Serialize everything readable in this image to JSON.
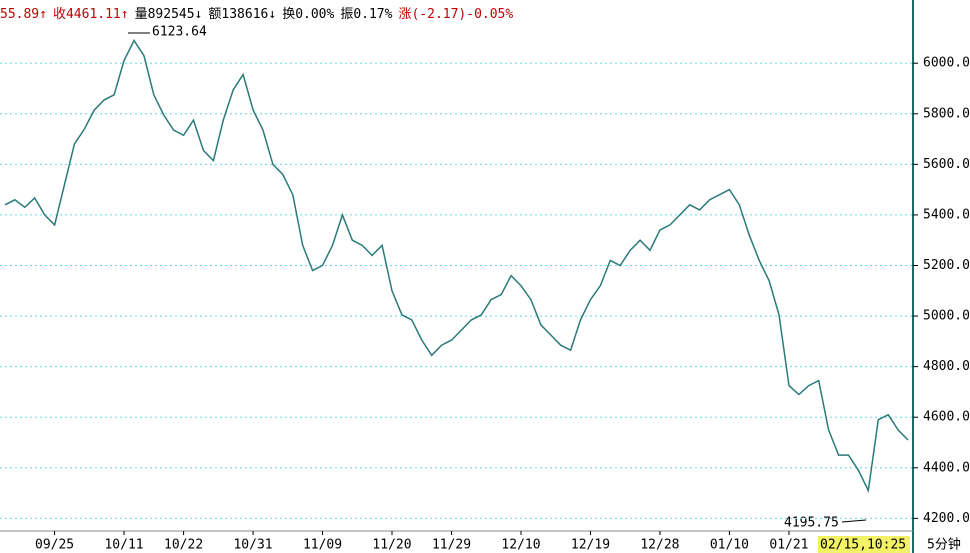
{
  "header": [
    {
      "text": "55.89↑",
      "color": "#c00000"
    },
    {
      "text": "收4461.11↑",
      "color": "#c00000"
    },
    {
      "text": "量892545↓",
      "color": "#000000"
    },
    {
      "text": "额138616↓",
      "color": "#000000"
    },
    {
      "text": "换0.00%",
      "color": "#000000"
    },
    {
      "text": "振0.17%",
      "color": "#000000"
    },
    {
      "text": "涨(-2.17)-0.05%",
      "color": "#c00000"
    }
  ],
  "chart_data": {
    "type": "line",
    "categories": [
      null,
      null,
      null,
      null,
      null,
      "09/25",
      null,
      null,
      null,
      null,
      null,
      null,
      "10/11",
      null,
      null,
      null,
      null,
      null,
      "10/22",
      null,
      null,
      null,
      null,
      null,
      null,
      "10/31",
      null,
      null,
      null,
      null,
      null,
      null,
      "11/09",
      null,
      null,
      null,
      null,
      null,
      null,
      "11/20",
      null,
      null,
      null,
      null,
      null,
      "11/29",
      null,
      null,
      null,
      null,
      null,
      null,
      "12/10",
      null,
      null,
      null,
      null,
      null,
      null,
      "12/19",
      null,
      null,
      null,
      null,
      null,
      null,
      "12/28",
      null,
      null,
      null,
      null,
      null,
      null,
      "01/10",
      null,
      null,
      null,
      null,
      null,
      "01/21",
      null,
      null,
      null,
      null,
      null,
      null,
      null,
      null,
      null,
      null,
      null,
      null
    ],
    "series": [
      {
        "color": "#2a7a7a",
        "values": [
          5440,
          5460,
          5430,
          5467,
          5400,
          5360,
          5520,
          5680,
          5740,
          5815,
          5855,
          5875,
          6010,
          6090,
          6030,
          5875,
          5795,
          5735,
          5715,
          5775,
          5655,
          5615,
          5775,
          5895,
          5955,
          5815,
          5735,
          5600,
          5560,
          5480,
          5280,
          5180,
          5200,
          5280,
          5400,
          5300,
          5280,
          5240,
          5280,
          5100,
          5005,
          4985,
          4905,
          4845,
          4885,
          4905,
          4945,
          4985,
          5005,
          5065,
          5085,
          5160,
          5120,
          5065,
          4965,
          4925,
          4885,
          4865,
          4985,
          5065,
          5120,
          5220,
          5200,
          5260,
          5300,
          5260,
          5340,
          5360,
          5400,
          5440,
          5420,
          5460,
          5480,
          5500,
          5440,
          5320,
          5220,
          5140,
          5005,
          4725,
          4690,
          4725,
          4745,
          4550,
          4450,
          4450,
          4390,
          4310,
          4590,
          4610,
          4550,
          4510
        ]
      }
    ],
    "ylim": [
      4150,
      6250
    ],
    "yticks": [
      {
        "value": 4200,
        "label": "4200.00"
      },
      {
        "value": 4400,
        "label": "4400.00"
      },
      {
        "value": 4600,
        "label": "4600.00"
      },
      {
        "value": 4800,
        "label": "4800.00"
      },
      {
        "value": 5000,
        "label": "5000.00"
      },
      {
        "value": 5200,
        "label": "5200.00"
      },
      {
        "value": 5400,
        "label": "5400.00"
      },
      {
        "value": 5600,
        "label": "5600.00"
      },
      {
        "value": 5800,
        "label": "5800.00"
      },
      {
        "value": 6000,
        "label": "6000.00"
      }
    ],
    "grid": true,
    "annotations": [
      "6123.64",
      "4195.75"
    ],
    "cursor_label": "02/15,10:25",
    "period": "5分钟"
  }
}
